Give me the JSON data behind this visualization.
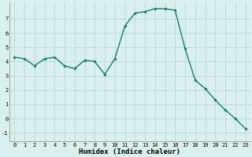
{
  "x": [
    0,
    1,
    2,
    3,
    4,
    5,
    6,
    7,
    8,
    9,
    10,
    11,
    12,
    13,
    14,
    15,
    16,
    17,
    18,
    19,
    20,
    21,
    22,
    23
  ],
  "y": [
    4.3,
    4.2,
    3.7,
    4.2,
    4.3,
    3.7,
    3.5,
    4.1,
    4.0,
    3.1,
    4.2,
    6.5,
    7.4,
    7.5,
    7.7,
    7.7,
    7.6,
    4.9,
    2.7,
    2.1,
    1.3,
    0.6,
    0.0,
    -0.7
  ],
  "line_color": "#1a7a6e",
  "marker": "D",
  "marker_size": 1.8,
  "line_width": 1.0,
  "xlabel": "Humidex (Indice chaleur)",
  "xlabel_fontsize": 6.5,
  "xlabel_fontweight": "bold",
  "bg_color": "#d9f0ee",
  "grid_color": "#b8d8d5",
  "xlim": [
    -0.5,
    23.5
  ],
  "ylim": [
    -1.6,
    8.2
  ],
  "yticks": [
    -1,
    0,
    1,
    2,
    3,
    4,
    5,
    6,
    7
  ],
  "xticks": [
    0,
    1,
    2,
    3,
    4,
    5,
    6,
    7,
    8,
    9,
    10,
    11,
    12,
    13,
    14,
    15,
    16,
    17,
    18,
    19,
    20,
    21,
    22,
    23
  ],
  "tick_fontsize": 5.0
}
